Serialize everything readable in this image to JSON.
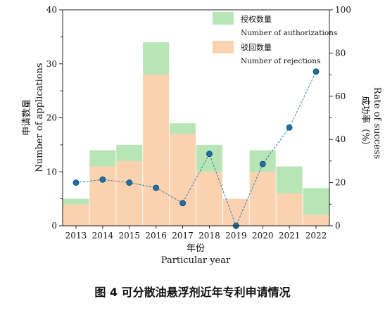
{
  "chart_data": {
    "type": "bar",
    "categories": [
      "2013",
      "2014",
      "2015",
      "2016",
      "2017",
      "2018",
      "2019",
      "2020",
      "2021",
      "2022"
    ],
    "series": [
      {
        "name": "驳回数量",
        "name_en": "Number of rejections",
        "values": [
          4,
          11,
          12,
          28,
          17,
          10,
          5,
          10,
          6,
          2
        ],
        "color": "#fad2af"
      },
      {
        "name": "授权数量",
        "name_en": "Number of authorizations",
        "values": [
          1,
          3,
          3,
          6,
          2,
          5,
          0,
          4,
          5,
          5
        ],
        "color": "#b8e5b5"
      }
    ],
    "stacked": true,
    "rate_series": {
      "values": [
        20,
        21.4,
        20,
        17.6,
        10.5,
        33.3,
        0,
        28.6,
        45.5,
        71.4
      ],
      "color": "#2a7fb8",
      "axis": "right"
    },
    "xlabel": "年份",
    "xlabel_en": "Particular year",
    "ylabel": "申请数量",
    "ylabel_en": "Number of applications",
    "y2label": "成功率（%）",
    "y2label_en": "Rate of success",
    "ylim": [
      0,
      40
    ],
    "y2lim": [
      0,
      100
    ],
    "yticks": [
      0,
      10,
      20,
      30,
      40
    ],
    "y2ticks": [
      0,
      20,
      40,
      60,
      80,
      100
    ],
    "grid": false,
    "legend_position": "top-right"
  },
  "caption": "图 4  可分散油悬浮剂近年专利申请情况"
}
